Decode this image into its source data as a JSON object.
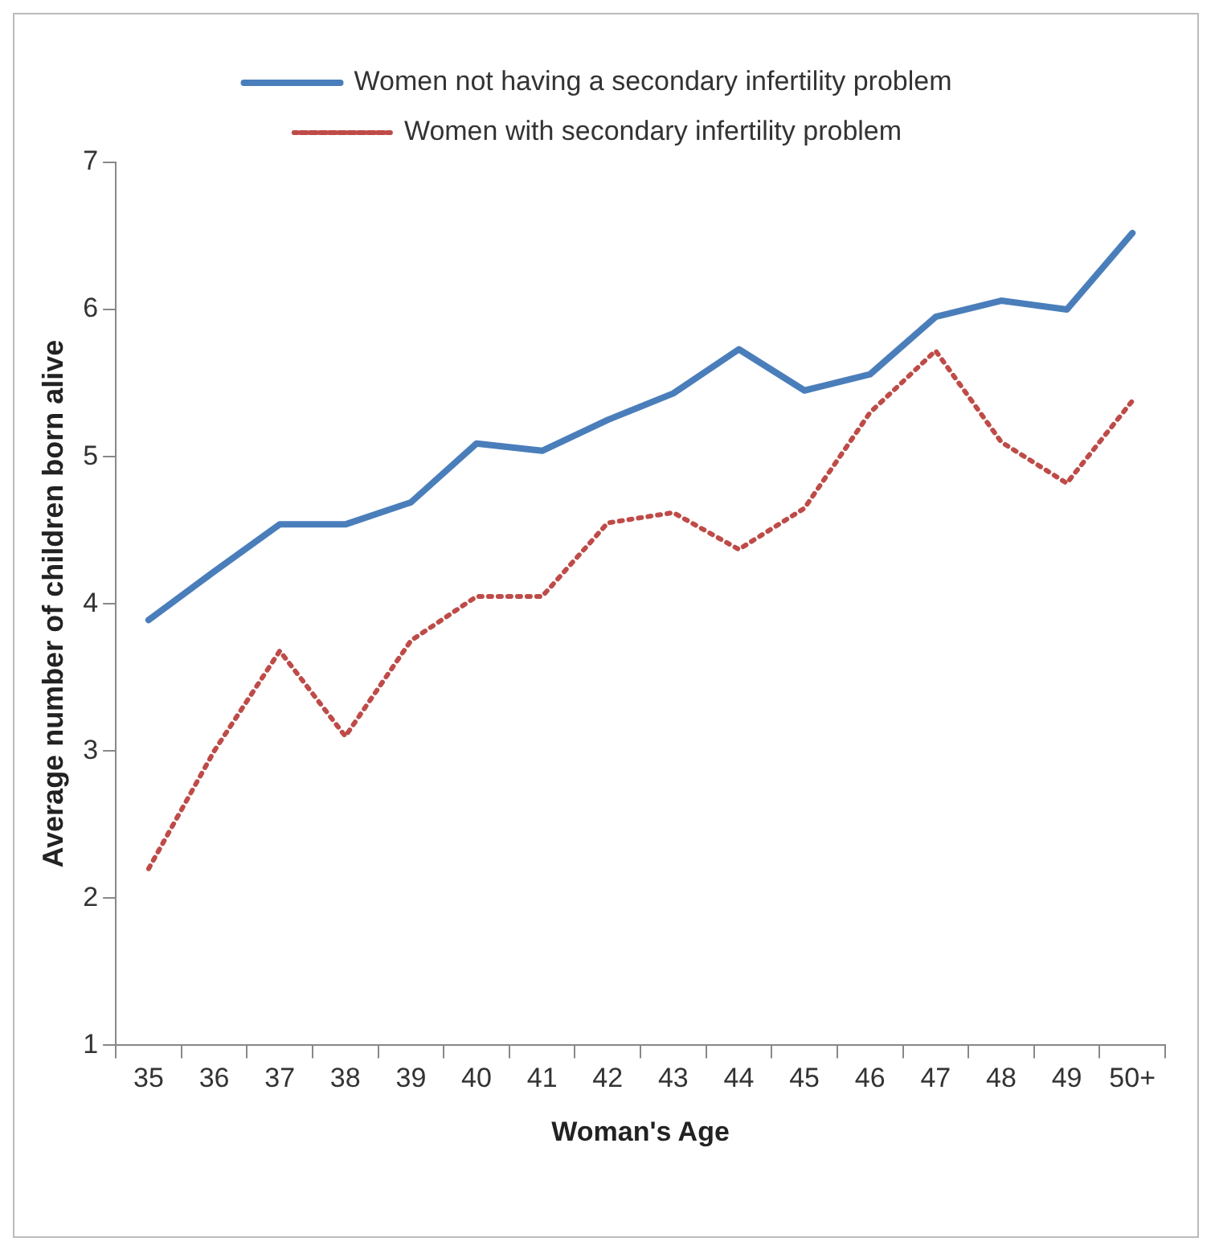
{
  "chart_data": {
    "type": "line",
    "xlabel": "Woman's Age",
    "ylabel": "Average number of children born alive",
    "categories": [
      "35",
      "36",
      "37",
      "38",
      "39",
      "40",
      "41",
      "42",
      "43",
      "44",
      "45",
      "46",
      "47",
      "48",
      "49",
      "50+"
    ],
    "series": [
      {
        "name": "Women not having a secondary infertility problem",
        "color": "#4a7ebb",
        "line_style": "solid",
        "values": [
          3.89,
          4.22,
          4.54,
          4.54,
          4.69,
          5.09,
          5.04,
          5.25,
          5.43,
          5.73,
          5.45,
          5.56,
          5.95,
          6.06,
          6.0,
          6.52
        ]
      },
      {
        "name": "Women with secondary infertility problem",
        "color": "#be4b48",
        "line_style": "dotted",
        "values": [
          2.2,
          3.0,
          3.68,
          3.1,
          3.75,
          4.05,
          4.05,
          4.55,
          4.62,
          4.37,
          4.65,
          5.3,
          5.72,
          5.1,
          4.82,
          5.38
        ]
      }
    ],
    "ylim": [
      1,
      7
    ],
    "yticks": [
      1,
      2,
      3,
      4,
      5,
      6,
      7
    ],
    "grid": false,
    "legend": "top",
    "marker": "none"
  }
}
